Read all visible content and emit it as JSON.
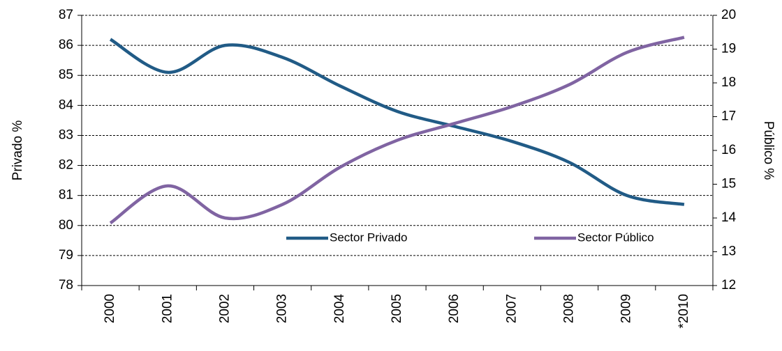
{
  "chart_data": {
    "type": "line",
    "categories": [
      "2000",
      "2001",
      "2002",
      "2003",
      "2004",
      "2005",
      "2006",
      "2007",
      "2008",
      "2009",
      "*2010"
    ],
    "series": [
      {
        "name": "Sector Privado",
        "color": "#215b86",
        "values": [
          86.2,
          85.1,
          86.0,
          85.6,
          84.65,
          83.8,
          83.3,
          82.8,
          82.1,
          81.0,
          80.7
        ]
      },
      {
        "name": "Sector Público",
        "color": "#8064a2",
        "axis": "y2",
        "values": [
          13.85,
          14.95,
          14.0,
          14.4,
          15.5,
          16.3,
          16.8,
          17.3,
          17.95,
          18.9,
          19.35
        ]
      }
    ],
    "ylabel": "Privado %",
    "y2label": "Público %",
    "ylim": [
      78,
      87
    ],
    "yticks": [
      78,
      79,
      80,
      81,
      82,
      83,
      84,
      85,
      86,
      87
    ],
    "y2lim": [
      12,
      20
    ],
    "y2ticks": [
      12,
      13,
      14,
      15,
      16,
      17,
      18,
      19,
      20
    ],
    "grid": true,
    "smooth": true
  }
}
